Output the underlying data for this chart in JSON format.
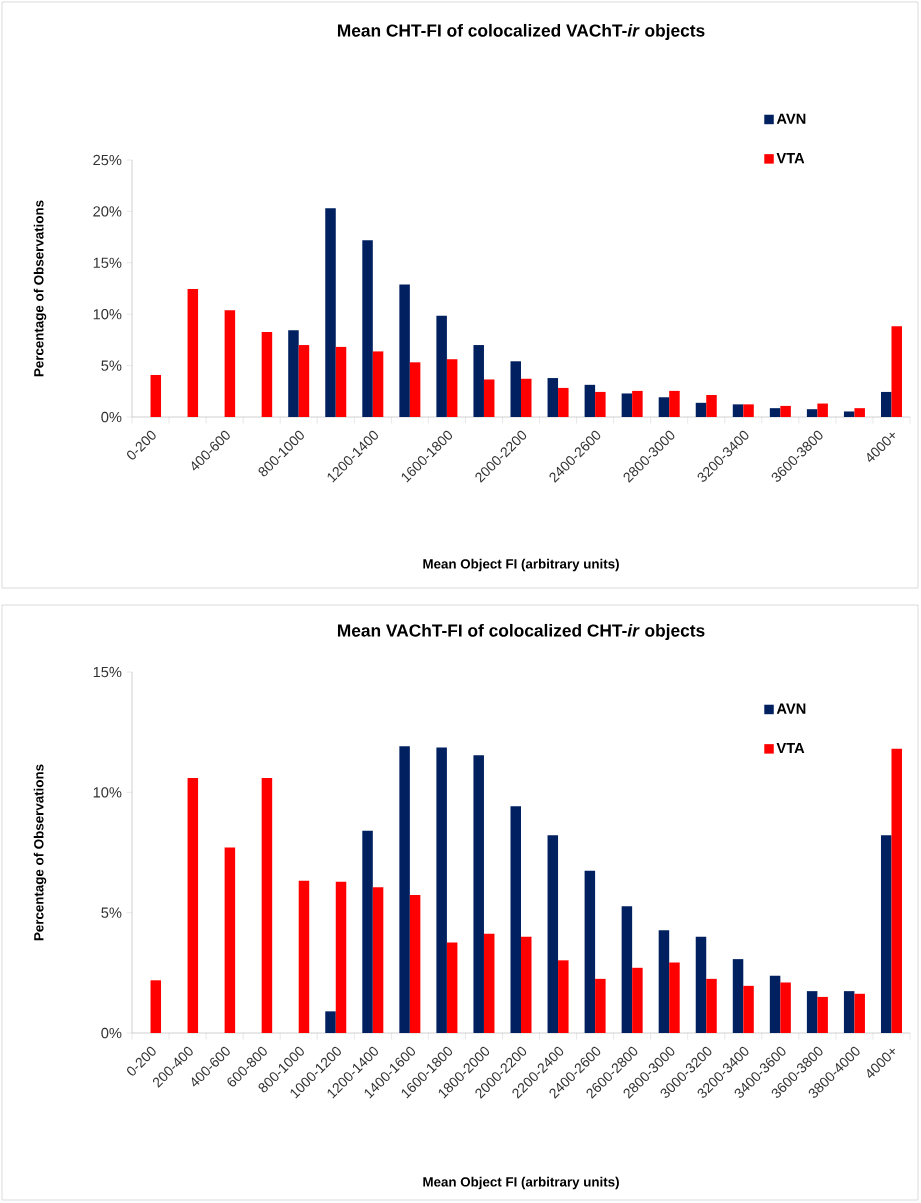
{
  "chart_data": [
    {
      "type": "bar",
      "title": "Mean CHT-FI of colocalized VAChT-*ir* objects",
      "xlabel": "Mean Object FI (arbitrary units)",
      "ylabel": "Percentage of Observations",
      "categories": [
        "0-200",
        null,
        "400-600",
        null,
        "800-1000",
        null,
        "1200-1400",
        null,
        "1600-1800",
        null,
        "2000-2200",
        null,
        "2400-2600",
        null,
        "2800-3000",
        null,
        "3200-3400",
        null,
        "3600-3800",
        null,
        "4000+"
      ],
      "series": [
        {
          "name": "AVN",
          "color": "#002060",
          "values": [
            0,
            0,
            0,
            0,
            8.45,
            20.3,
            17.2,
            12.9,
            9.85,
            7.0,
            5.42,
            3.79,
            3.13,
            2.29,
            1.92,
            1.38,
            1.23,
            0.86,
            0.76,
            0.54,
            2.44
          ]
        },
        {
          "name": "VTA",
          "color": "#ff0000",
          "values": [
            4.09,
            12.44,
            10.39,
            8.28,
            7.0,
            6.82,
            6.38,
            5.32,
            5.62,
            3.65,
            3.72,
            2.83,
            2.44,
            2.54,
            2.54,
            2.14,
            1.23,
            1.08,
            1.31,
            0.86,
            8.84
          ]
        }
      ],
      "ylim": [
        0,
        25
      ],
      "yticks": [
        {
          "value": 0,
          "label": "0%"
        },
        {
          "value": 5,
          "label": "5%"
        },
        {
          "value": 10,
          "label": "10%"
        },
        {
          "value": 15,
          "label": "15%"
        },
        {
          "value": 20,
          "label": "20%"
        },
        {
          "value": 25,
          "label": "25%"
        }
      ],
      "legend": "top right"
    },
    {
      "type": "bar",
      "title": "Mean VAChT-FI of colocalized CHT-*ir* objects",
      "xlabel": "Mean Object FI (arbitrary units)",
      "ylabel": "Percentage of Observations",
      "categories": [
        "0-200",
        "200-400",
        "400-600",
        "600-800",
        "800-1000",
        "1000-1200",
        "1200-1400",
        "1400-1600",
        "1600-1800",
        "1800-2000",
        "2000-2200",
        "2200-2400",
        "2400-2600",
        "2600-2800",
        "2800-3000",
        "3000-3200",
        "3200-3400",
        "3400-3600",
        "3600-3800",
        "3800-4000",
        "4000+"
      ],
      "series": [
        {
          "name": "AVN",
          "color": "#002060",
          "values": [
            0,
            0,
            0,
            0,
            0,
            0.9,
            8.4,
            11.92,
            11.86,
            11.54,
            9.42,
            8.22,
            6.74,
            5.27,
            4.27,
            4.0,
            3.07,
            2.38,
            1.74,
            1.74,
            8.22
          ]
        },
        {
          "name": "VTA",
          "color": "#ff0000",
          "values": [
            2.19,
            10.6,
            7.71,
            10.6,
            6.33,
            6.29,
            6.06,
            5.73,
            3.76,
            4.12,
            4.0,
            3.02,
            2.25,
            2.71,
            2.93,
            2.25,
            1.96,
            2.1,
            1.5,
            1.63,
            11.81
          ]
        }
      ],
      "ylim": [
        0,
        15
      ],
      "yticks": [
        {
          "value": 0,
          "label": "0%"
        },
        {
          "value": 5,
          "label": "5%"
        },
        {
          "value": 10,
          "label": "10%"
        },
        {
          "value": 15,
          "label": "15%"
        }
      ],
      "legend": "top right"
    }
  ]
}
